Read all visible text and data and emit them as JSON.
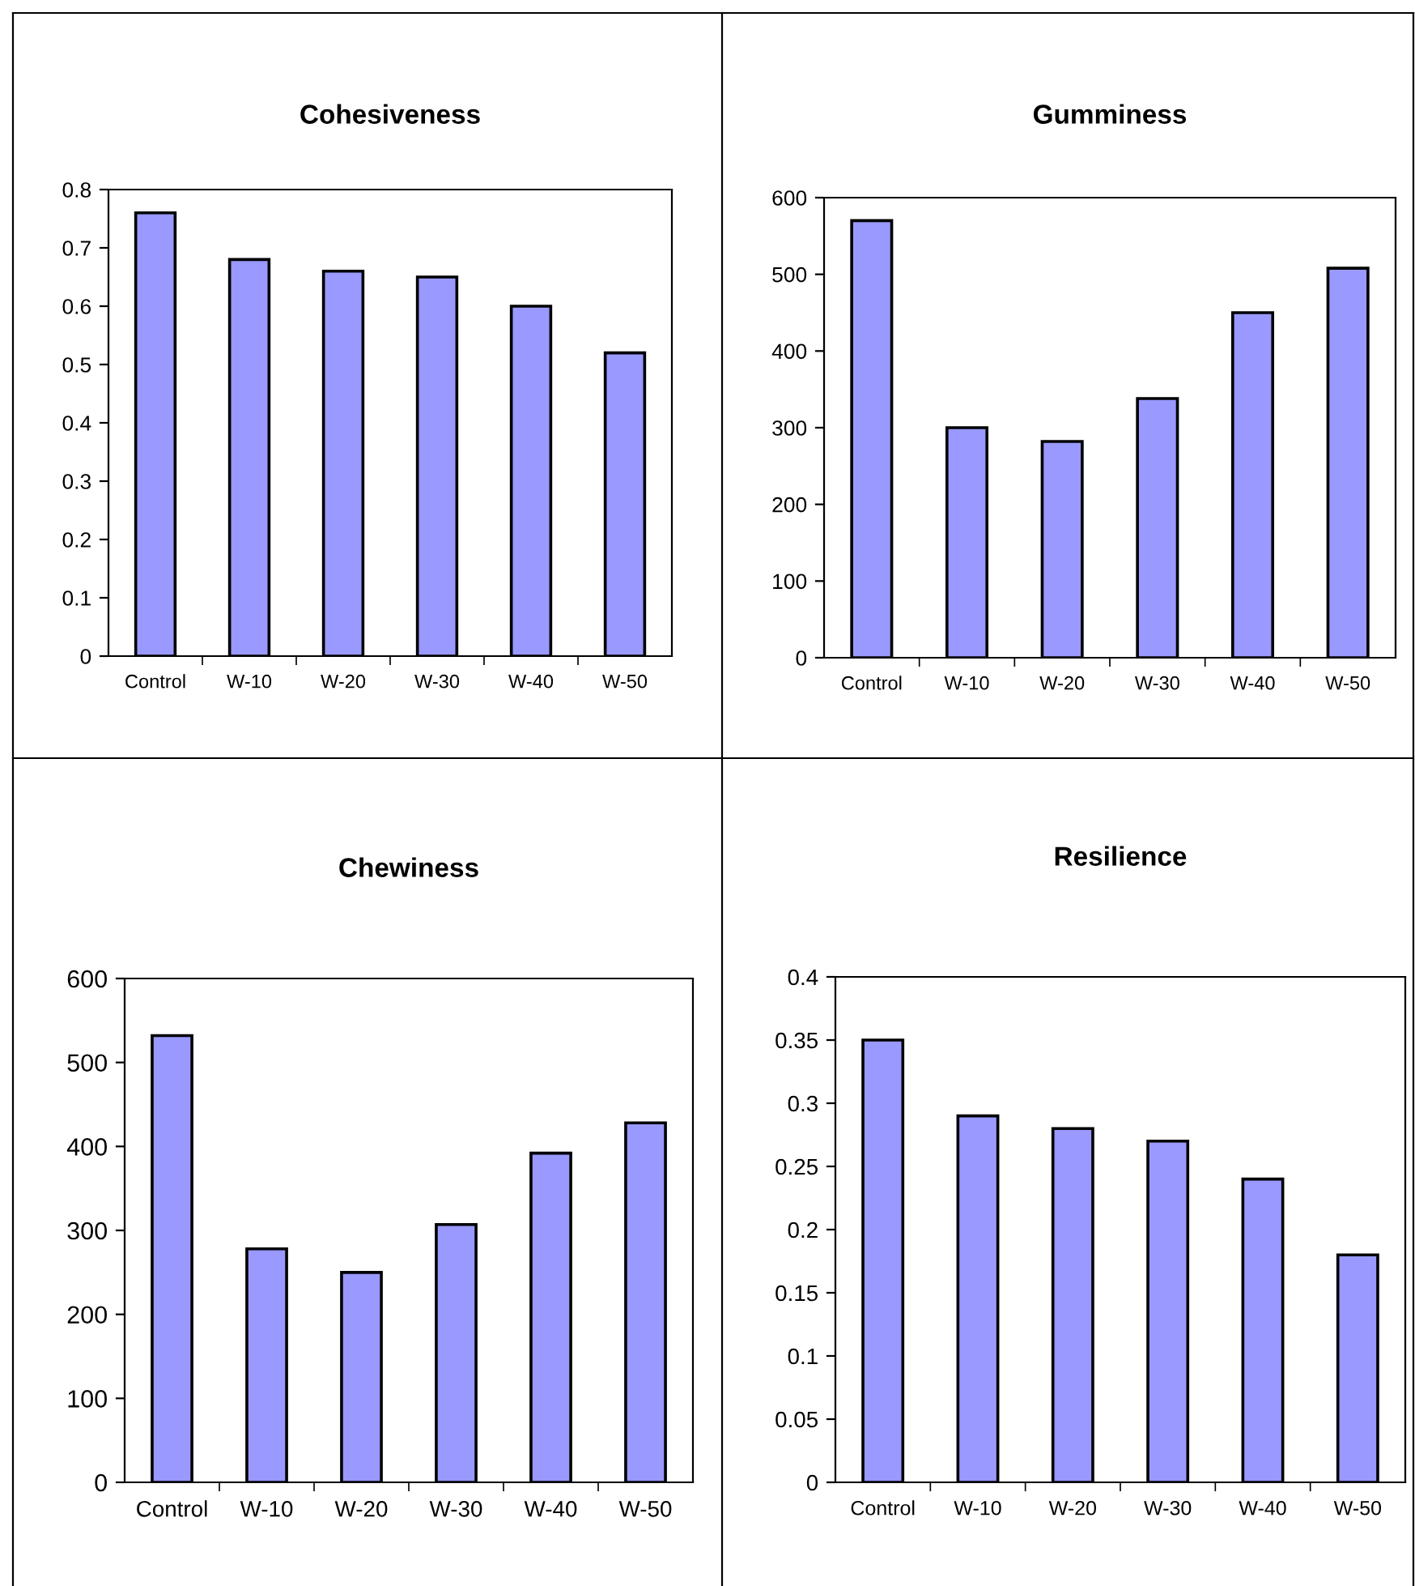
{
  "chart_data": [
    {
      "type": "bar",
      "title": "Cohesiveness",
      "categories": [
        "Control",
        "W-10",
        "W-20",
        "W-30",
        "W-40",
        "W-50"
      ],
      "values": [
        0.76,
        0.68,
        0.66,
        0.65,
        0.6,
        0.52
      ],
      "color": "#9999ff",
      "ylim": [
        0,
        0.8
      ],
      "yticks": [
        {
          "value": 0,
          "label": "0"
        },
        0.1,
        0.2,
        0.3,
        0.4,
        0.5,
        0.6,
        0.7,
        0.8
      ],
      "grid": false
    },
    {
      "type": "bar",
      "title": "Gumminess",
      "categories": [
        "Control",
        "W-10",
        "W-20",
        "W-30",
        "W-40",
        "W-50"
      ],
      "values": [
        570,
        300,
        282,
        338,
        450,
        508
      ],
      "color": "#9999ff",
      "ylim": [
        0,
        600
      ],
      "yticks": [
        0,
        100,
        200,
        300,
        400,
        500,
        600
      ],
      "grid": false
    },
    {
      "type": "bar",
      "title": "Chewiness",
      "categories": [
        "Control",
        "W-10",
        "W-20",
        "W-30",
        "W-40",
        "W-50"
      ],
      "values": [
        532,
        278,
        250,
        307,
        392,
        428
      ],
      "color": "#9999ff",
      "ylim": [
        0,
        600
      ],
      "yticks": [
        0,
        100,
        200,
        300,
        400,
        500,
        600
      ],
      "grid": false
    },
    {
      "type": "bar",
      "title": "Resilience",
      "categories": [
        "Control",
        "W-10",
        "W-20",
        "W-30",
        "W-40",
        "W-50"
      ],
      "values": [
        0.35,
        0.29,
        0.28,
        0.27,
        0.24,
        0.18
      ],
      "color": "#9999ff",
      "ylim": [
        0,
        0.4
      ],
      "yticks": [
        {
          "value": 0,
          "label": "0"
        },
        0.05,
        0.1,
        0.15,
        0.2,
        0.25,
        0.3,
        0.35,
        0.4
      ],
      "grid": false
    }
  ]
}
